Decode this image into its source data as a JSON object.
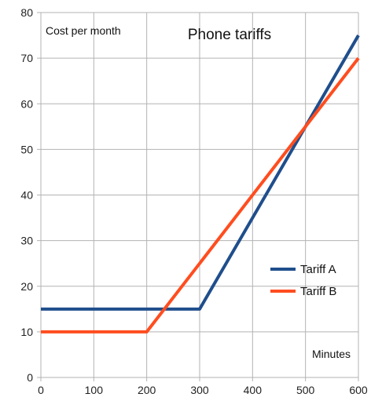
{
  "chart_data": {
    "type": "line",
    "title": "Phone tariffs",
    "xlabel": "Minutes",
    "ylabel": "Cost per month",
    "xlim": [
      0,
      600
    ],
    "ylim": [
      0,
      80
    ],
    "x_ticks": [
      0,
      100,
      200,
      300,
      400,
      500,
      600
    ],
    "y_ticks": [
      0,
      10,
      20,
      30,
      40,
      50,
      60,
      70,
      80
    ],
    "grid": true,
    "legend_position": "right",
    "series": [
      {
        "name": "Tariff A",
        "color": "#1f4e8c",
        "x": [
          0,
          300,
          600
        ],
        "y": [
          15,
          15,
          75
        ]
      },
      {
        "name": "Tariff B",
        "color": "#ff4d1f",
        "x": [
          0,
          200,
          600
        ],
        "y": [
          10,
          10,
          70
        ]
      }
    ]
  }
}
